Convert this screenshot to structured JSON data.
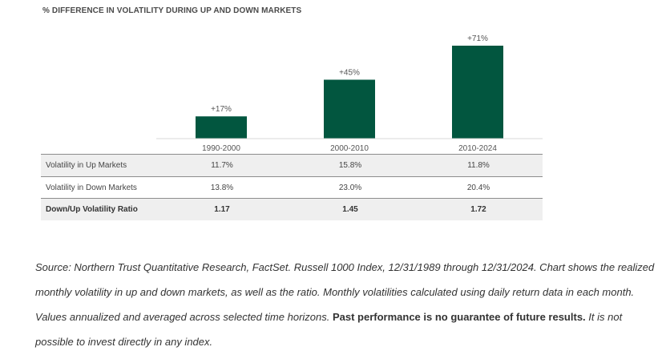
{
  "chart_data": {
    "type": "bar",
    "title": "% DIFFERENCE IN VOLATILITY DURING UP AND DOWN MARKETS",
    "categories": [
      "1990-2000",
      "2000-2010",
      "2010-2024"
    ],
    "values": [
      17,
      45,
      71
    ],
    "data_labels": [
      "+17%",
      "+45%",
      "+71%"
    ],
    "bar_color": "#02563f",
    "ylim": [
      0,
      71
    ],
    "grid": false,
    "legend": "none"
  },
  "table": {
    "rows": [
      {
        "label": "Volatility in Up Markets",
        "values": [
          "11.7%",
          "15.8%",
          "11.8%"
        ]
      },
      {
        "label": "Volatility in Down Markets",
        "values": [
          "13.8%",
          "23.0%",
          "20.4%"
        ]
      },
      {
        "label": "Down/Up Volatility Ratio",
        "values": [
          "1.17",
          "1.45",
          "1.72"
        ]
      }
    ]
  },
  "source": {
    "text1": "Source: Northern Trust Quantitative Research, FactSet. Russell 1000 Index, 12/31/1989 through 12/31/2024. Chart  shows the realized monthly volatility in up and down markets, as well as the ratio. Monthly volatilities calculated using daily return data in each month. Values annualized and averaged across selected time horizons. ",
    "bold": "Past performance is no guarantee of future results.",
    "text2": " It is not possible to invest directly in any index."
  }
}
